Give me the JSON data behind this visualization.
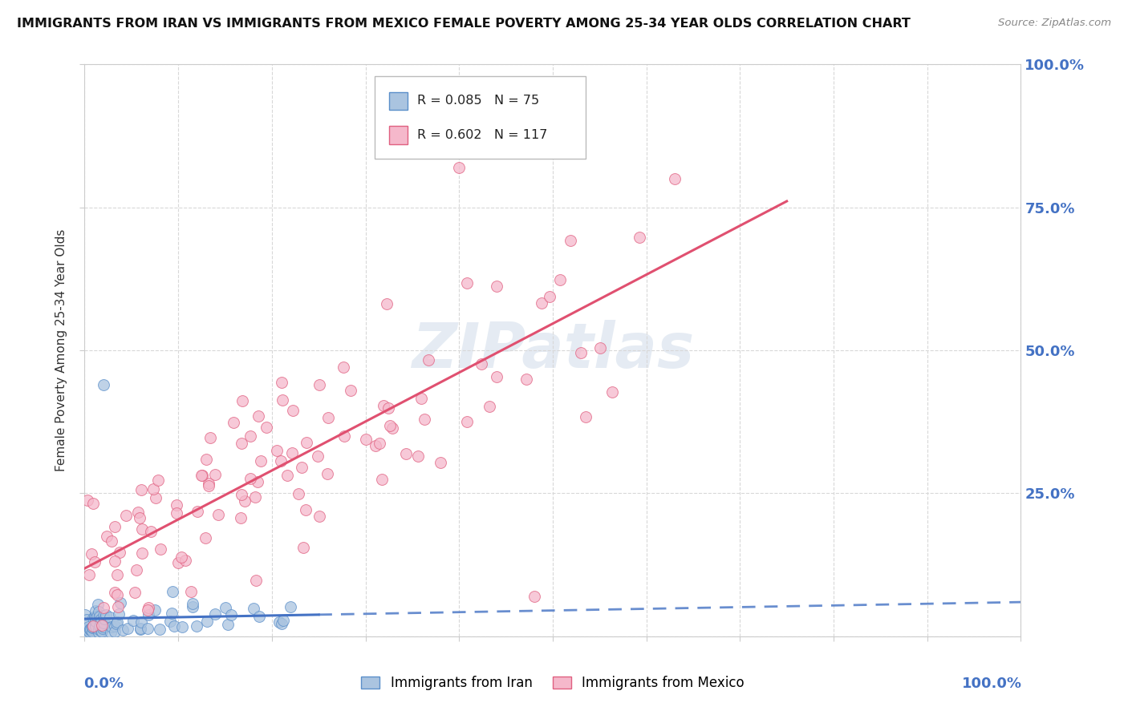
{
  "title": "IMMIGRANTS FROM IRAN VS IMMIGRANTS FROM MEXICO FEMALE POVERTY AMONG 25-34 YEAR OLDS CORRELATION CHART",
  "source": "Source: ZipAtlas.com",
  "ylabel": "Female Poverty Among 25-34 Year Olds",
  "iran_R": 0.085,
  "iran_N": 75,
  "mexico_R": 0.602,
  "mexico_N": 117,
  "iran_color": "#aac4e0",
  "iran_edge_color": "#5b8fca",
  "iran_line_color": "#4472c4",
  "iran_line_dash_color": "#7aa5d8",
  "mexico_color": "#f5b8cb",
  "mexico_edge_color": "#e06080",
  "mexico_line_color": "#e05070",
  "legend_iran_label": "Immigrants from Iran",
  "legend_mexico_label": "Immigrants from Mexico",
  "watermark": "ZIPatlas",
  "background_color": "#ffffff",
  "xlim": [
    0.0,
    1.0
  ],
  "ylim": [
    0.0,
    1.0
  ],
  "ytick_vals": [
    0.0,
    0.25,
    0.5,
    0.75,
    1.0
  ],
  "ytick_labels": [
    "",
    "25.0%",
    "50.0%",
    "75.0%",
    "100.0%"
  ]
}
